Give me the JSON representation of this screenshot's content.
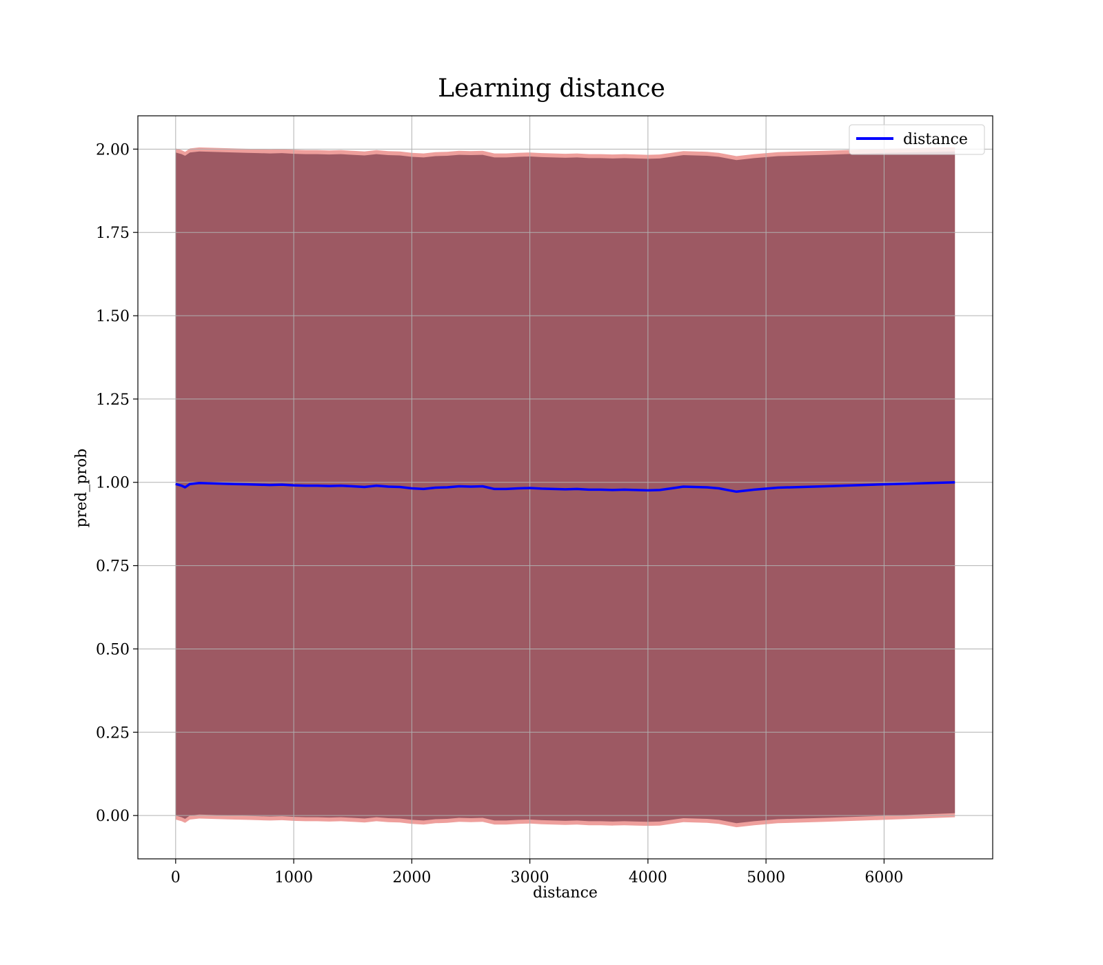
{
  "chart_data": {
    "type": "line",
    "title": "Learning distance",
    "xlabel": "distance",
    "ylabel": "pred_prob",
    "xlim": [
      -320,
      6920
    ],
    "ylim": [
      -0.13,
      2.1
    ],
    "xticks": [
      0,
      1000,
      2000,
      3000,
      4000,
      5000,
      6000
    ],
    "yticks": [
      0.0,
      0.25,
      0.5,
      0.75,
      1.0,
      1.25,
      1.5,
      1.75,
      2.0
    ],
    "ytick_labels": [
      "0.00",
      "0.25",
      "0.50",
      "0.75",
      "1.00",
      "1.25",
      "1.50",
      "1.75",
      "2.00"
    ],
    "grid": true,
    "legend_position": "top-right",
    "colors": {
      "line": "#0000ff",
      "band_inner": "#6b2e40",
      "band_outer": "#e0504a",
      "grid": "#b0b0b0"
    },
    "series": [
      {
        "name": "distance",
        "x": [
          0,
          50,
          80,
          120,
          200,
          300,
          400,
          500,
          600,
          700,
          800,
          900,
          1000,
          1100,
          1200,
          1300,
          1400,
          1500,
          1600,
          1700,
          1800,
          1900,
          2000,
          2100,
          2200,
          2300,
          2400,
          2500,
          2600,
          2700,
          2800,
          2900,
          3000,
          3100,
          3200,
          3300,
          3400,
          3500,
          3600,
          3700,
          3800,
          3900,
          4000,
          4100,
          4200,
          4300,
          4400,
          4500,
          4600,
          4750,
          4900,
          5100,
          5500,
          6000,
          6600
        ],
        "y": [
          0.995,
          0.99,
          0.985,
          0.995,
          0.998,
          0.997,
          0.996,
          0.995,
          0.994,
          0.993,
          0.992,
          0.993,
          0.991,
          0.99,
          0.99,
          0.989,
          0.99,
          0.988,
          0.986,
          0.99,
          0.987,
          0.986,
          0.982,
          0.98,
          0.984,
          0.985,
          0.988,
          0.987,
          0.988,
          0.98,
          0.98,
          0.982,
          0.983,
          0.981,
          0.98,
          0.979,
          0.98,
          0.978,
          0.978,
          0.977,
          0.978,
          0.977,
          0.976,
          0.977,
          0.982,
          0.987,
          0.986,
          0.985,
          0.982,
          0.972,
          0.978,
          0.984,
          0.988,
          0.994,
          1.0
        ]
      }
    ],
    "band": {
      "x": [
        0,
        50,
        80,
        120,
        200,
        300,
        400,
        500,
        600,
        700,
        800,
        900,
        1000,
        1100,
        1200,
        1300,
        1400,
        1500,
        1600,
        1700,
        1800,
        1900,
        2000,
        2100,
        2200,
        2300,
        2400,
        2500,
        2600,
        2700,
        2800,
        2900,
        3000,
        3100,
        3200,
        3300,
        3400,
        3500,
        3600,
        3700,
        3800,
        3900,
        4000,
        4100,
        4200,
        4300,
        4400,
        4500,
        4600,
        4750,
        4900,
        5100,
        5500,
        6000,
        6600
      ],
      "upper": [
        1.99,
        1.985,
        1.98,
        1.99,
        1.993,
        1.992,
        1.991,
        1.99,
        1.989,
        1.988,
        1.987,
        1.988,
        1.986,
        1.985,
        1.985,
        1.984,
        1.985,
        1.983,
        1.981,
        1.985,
        1.982,
        1.981,
        1.977,
        1.975,
        1.979,
        1.98,
        1.983,
        1.982,
        1.983,
        1.975,
        1.975,
        1.977,
        1.978,
        1.976,
        1.975,
        1.974,
        1.975,
        1.973,
        1.973,
        1.972,
        1.973,
        1.972,
        1.971,
        1.972,
        1.977,
        1.982,
        1.981,
        1.98,
        1.977,
        1.967,
        1.973,
        1.979,
        1.983,
        1.989,
        1.993
      ],
      "lower": [
        0.0,
        -0.005,
        -0.01,
        0.0,
        0.003,
        0.002,
        0.001,
        0.0,
        -0.001,
        -0.002,
        -0.003,
        -0.002,
        -0.004,
        -0.005,
        -0.005,
        -0.006,
        -0.005,
        -0.007,
        -0.009,
        -0.005,
        -0.008,
        -0.009,
        -0.013,
        -0.015,
        -0.011,
        -0.01,
        -0.007,
        -0.008,
        -0.007,
        -0.015,
        -0.015,
        -0.013,
        -0.012,
        -0.014,
        -0.015,
        -0.016,
        -0.015,
        -0.017,
        -0.017,
        -0.018,
        -0.017,
        -0.018,
        -0.019,
        -0.018,
        -0.013,
        -0.008,
        -0.009,
        -0.01,
        -0.013,
        -0.023,
        -0.017,
        -0.011,
        -0.007,
        -0.001,
        0.007
      ]
    }
  }
}
